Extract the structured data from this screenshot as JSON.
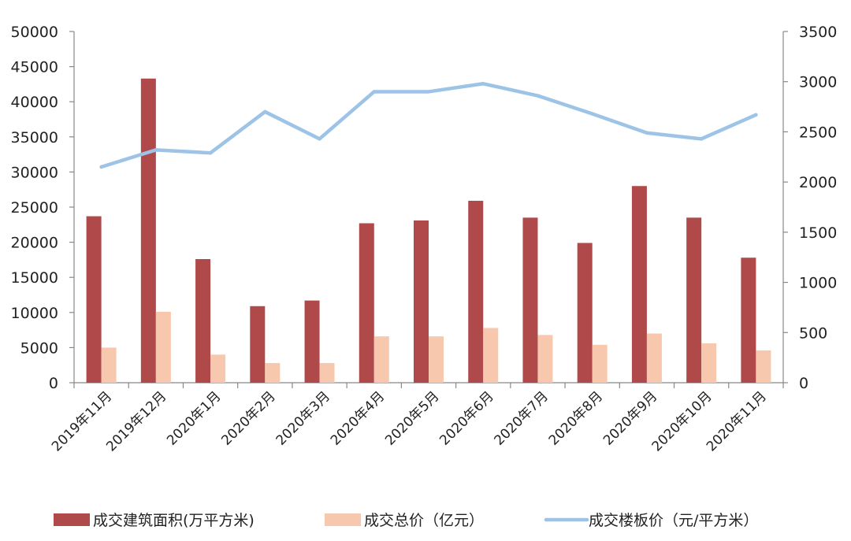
{
  "chart_data": {
    "type": "bar",
    "categories": [
      "2019年11月",
      "2019年12月",
      "2020年1月",
      "2020年2月",
      "2020年3月",
      "2020年4月",
      "2020年5月",
      "2020年6月",
      "2020年7月",
      "2020年8月",
      "2020年9月",
      "2020年10月",
      "2020年11月"
    ],
    "series": [
      {
        "name": "成交建筑面积(万平方米)",
        "type": "bar",
        "axis": "left",
        "color": "#b04a4a",
        "values": [
          23700,
          43300,
          17600,
          10900,
          11700,
          22700,
          23100,
          25900,
          23500,
          19900,
          28000,
          23500,
          17800
        ]
      },
      {
        "name": "成交总价（亿元）",
        "type": "bar",
        "axis": "left",
        "color": "#f7c8ad",
        "values": [
          5000,
          10100,
          4000,
          2800,
          2800,
          6600,
          6600,
          7800,
          6800,
          5400,
          7000,
          5600,
          4600
        ]
      },
      {
        "name": "成交楼板价（元/平方米）",
        "type": "line",
        "axis": "right",
        "color": "#9dc3e6",
        "values": [
          2150,
          2320,
          2290,
          2700,
          2430,
          2900,
          2900,
          2980,
          2860,
          2680,
          2490,
          2430,
          2670
        ]
      }
    ],
    "left_axis": {
      "min": 0,
      "max": 50000,
      "step": 5000,
      "tick_labels": [
        "0",
        "5000",
        "10000",
        "15000",
        "20000",
        "25000",
        "30000",
        "35000",
        "40000",
        "45000",
        "50000"
      ]
    },
    "right_axis": {
      "min": 0,
      "max": 3500,
      "step": 500,
      "tick_labels": [
        "0",
        "500",
        "1000",
        "1500",
        "2000",
        "2500",
        "3000",
        "3500"
      ]
    },
    "grid": false,
    "legend_position": "bottom"
  }
}
